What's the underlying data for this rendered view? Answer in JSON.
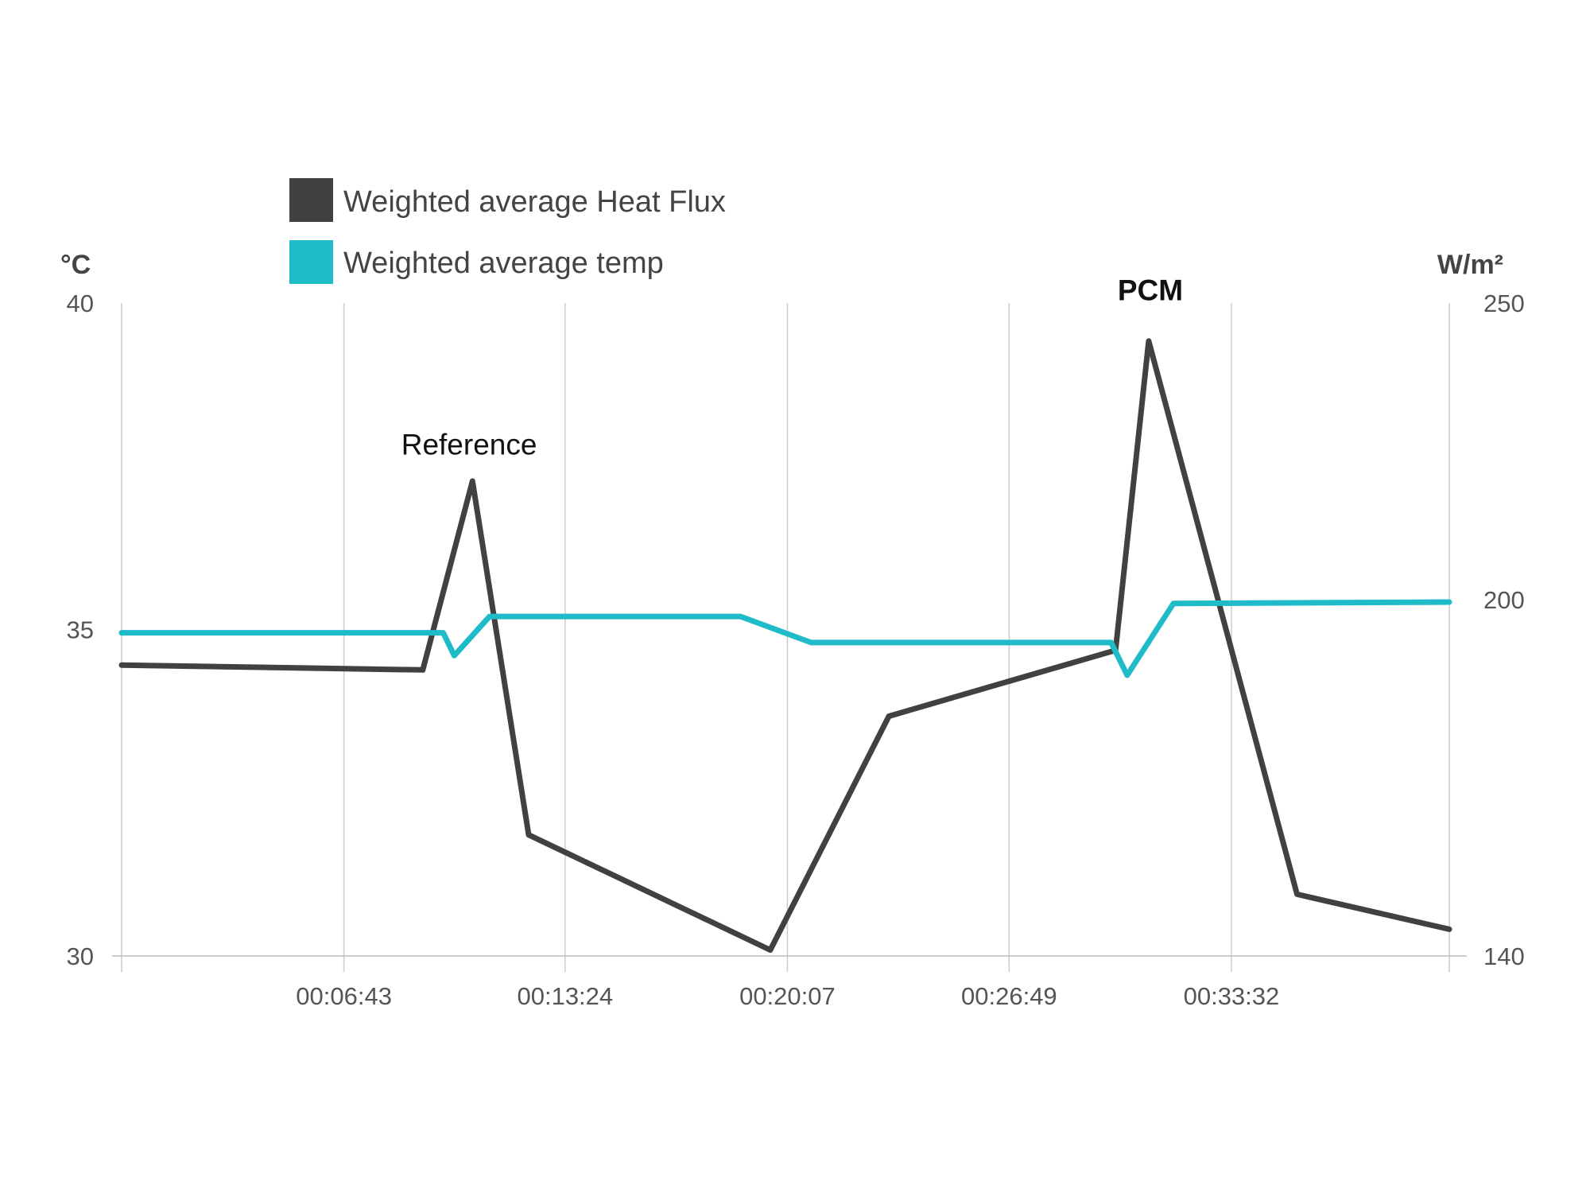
{
  "chart_data": {
    "type": "line",
    "legend": [
      {
        "label": "Weighted average Heat Flux",
        "color": "#414141"
      },
      {
        "label": "Weighted average temp",
        "color": "#1fbbc9"
      }
    ],
    "left_axis": {
      "unit": "°C",
      "ylim": [
        30,
        40
      ],
      "ticks": [
        "30",
        "35",
        "40"
      ]
    },
    "right_axis": {
      "unit": "W/m²",
      "ylim": [
        140,
        250
      ],
      "ticks": [
        "140",
        "200",
        "250"
      ]
    },
    "x_axis": {
      "xlim": [
        0,
        2407
      ],
      "ticks": [
        {
          "v": 403,
          "label": "00:06:43"
        },
        {
          "v": 804,
          "label": "00:13:24"
        },
        {
          "v": 1207,
          "label": "00:20:07"
        },
        {
          "v": 1609,
          "label": "00:26:49"
        },
        {
          "v": 2012,
          "label": "00:33:32"
        }
      ],
      "grid_positions": [
        0,
        403,
        804,
        1207,
        1609,
        2012,
        2407
      ]
    },
    "series": [
      {
        "name": "Weighted average Heat Flux",
        "axis": "right",
        "color": "#414141",
        "x": [
          0,
          546,
          636,
          738,
          1176,
          1391,
          1802,
          1862,
          2131,
          2407
        ],
        "y": [
          189,
          188.2,
          220,
          160.4,
          141,
          180.4,
          191.5,
          243.6,
          150.4,
          144.5
        ]
      },
      {
        "name": "Weighted average temp",
        "axis": "left",
        "color": "#1fbbc9",
        "x": [
          0,
          583,
          603,
          667,
          1122,
          1250,
          1794,
          1823,
          1907,
          2407
        ],
        "y": [
          34.95,
          34.95,
          34.6,
          35.2,
          35.2,
          34.8,
          34.8,
          34.3,
          35.4,
          35.42
        ]
      }
    ],
    "annotations": [
      {
        "text": "Reference",
        "x": 630,
        "y": 224.5,
        "axis": "right",
        "bold": false
      },
      {
        "text": "PCM",
        "x": 1865,
        "y": 250.5,
        "axis": "right",
        "bold": true
      }
    ],
    "grid": true
  }
}
